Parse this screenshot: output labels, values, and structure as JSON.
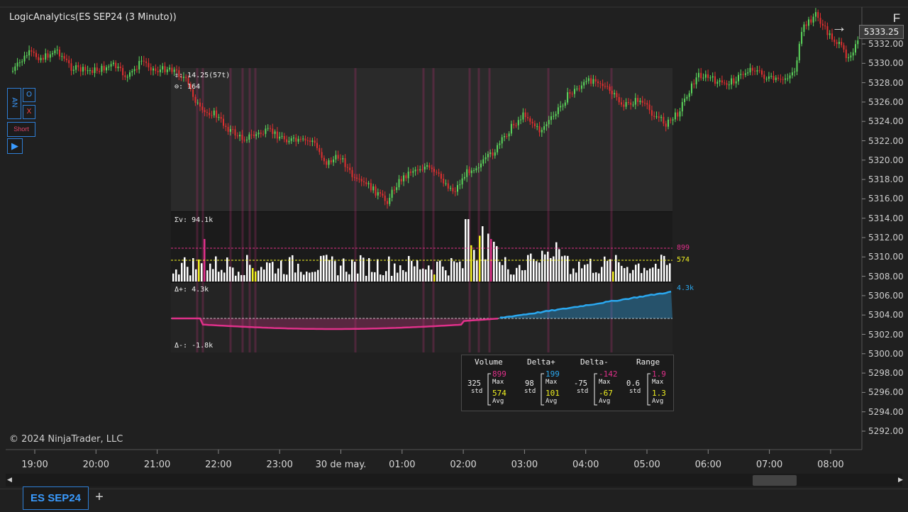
{
  "window": {
    "title": "LogicAnalytics(ES SEP24 (3 Minuto))"
  },
  "copyright": "© 2024 NinjaTrader, LLC",
  "toolbar": {
    "an_label": "AN",
    "o_label": "O",
    "x_label": "X",
    "short_label": "Short",
    "play_icon": "play-icon",
    "f_label": "F"
  },
  "price_axis": {
    "labels": [
      "5332.00",
      "5330.00",
      "5328.00",
      "5326.00",
      "5324.00",
      "5322.00",
      "5320.00",
      "5318.00",
      "5316.00",
      "5314.00",
      "5312.00",
      "5310.00",
      "5308.00",
      "5306.00",
      "5304.00",
      "5302.00",
      "5300.00",
      "5298.00",
      "5296.00",
      "5294.00",
      "5292.00"
    ],
    "last_price": "5333.25"
  },
  "time_axis": {
    "labels": [
      "19:00",
      "20:00",
      "21:00",
      "22:00",
      "23:00",
      "30 de may.",
      "01:00",
      "02:00",
      "03:00",
      "04:00",
      "05:00",
      "06:00",
      "07:00",
      "08:00"
    ]
  },
  "overlay": {
    "range_text": "⇕: 14.25(57t)",
    "bars_text": "⊖: 164",
    "sum_volume": "Σv: 94.1k",
    "volume_max": "899",
    "volume_avg": "574",
    "delta_plus": "Δ+: 4.3k",
    "delta_minus": "Δ-: -1.8k",
    "delta_plus_value": "4.3k"
  },
  "stats": {
    "headers": [
      "Volume",
      "Delta+",
      "Delta-",
      "Range"
    ],
    "std_label": "std",
    "max_label": "Max",
    "avg_label": "Avg",
    "volume": {
      "std": "325",
      "max": "899",
      "avg": "574"
    },
    "delta_plus": {
      "std": "98",
      "max": "199",
      "avg": "101"
    },
    "delta_minus": {
      "std": "-75",
      "max": "-142",
      "avg": "-67"
    },
    "range": {
      "std": "0.6",
      "max": "1.9",
      "avg": "1.3"
    }
  },
  "tabs": {
    "active": "ES SEP24",
    "add": "+"
  },
  "colors": {
    "bull": "#5cd65c",
    "bear": "#e03030",
    "magenta": "#e0308a",
    "yellow": "#f0f020",
    "blue": "#2aa8f0",
    "accent": "#3a9bff"
  }
}
